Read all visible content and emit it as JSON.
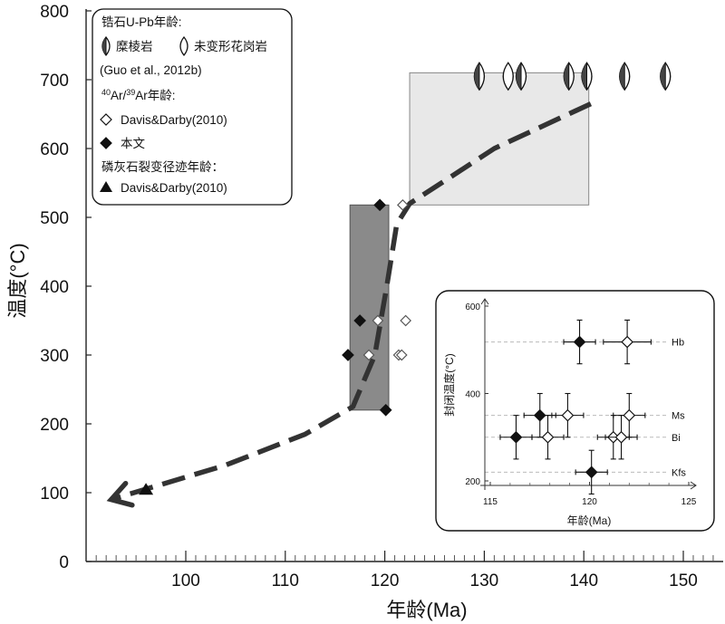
{
  "chart_data": {
    "type": "scatter",
    "xlabel": "年龄(Ma)",
    "ylabel": "温度(°C)",
    "xlim": [
      90,
      154
    ],
    "ylim": [
      0,
      800
    ],
    "xticks": [
      "100",
      "110",
      "120",
      "130",
      "140",
      "150"
    ],
    "yticks": [
      "0",
      "100",
      "200",
      "300",
      "400",
      "500",
      "600",
      "700",
      "800"
    ],
    "regions": [
      {
        "name": "ar-ar-closure-box",
        "x": [
          116.5,
          120.4
        ],
        "y": [
          220,
          518
        ],
        "shade": "dark"
      },
      {
        "name": "zircon-box",
        "x": [
          122.5,
          140.5
        ],
        "y": [
          518,
          710
        ],
        "shade": "light"
      }
    ],
    "zircon_upb": {
      "mylonite": [
        {
          "x": 129.5,
          "y": 705
        },
        {
          "x": 133.7,
          "y": 705
        },
        {
          "x": 138.5,
          "y": 705
        },
        {
          "x": 140.3,
          "y": 705
        },
        {
          "x": 144.1,
          "y": 705
        },
        {
          "x": 148.2,
          "y": 705
        }
      ],
      "undeformed_granite": [
        {
          "x": 132.4,
          "y": 705
        }
      ]
    },
    "ar_ar_davis_darby_2010": [
      {
        "x": 119.3,
        "y": 350
      },
      {
        "x": 118.4,
        "y": 300
      },
      {
        "x": 121.4,
        "y": 300
      },
      {
        "x": 121.7,
        "y": 300
      },
      {
        "x": 122.1,
        "y": 350
      },
      {
        "x": 121.8,
        "y": 518
      }
    ],
    "ar_ar_this_paper": [
      {
        "x": 119.5,
        "y": 518
      },
      {
        "x": 117.5,
        "y": 350
      },
      {
        "x": 116.3,
        "y": 300
      },
      {
        "x": 120.1,
        "y": 220
      }
    ],
    "apatite_fission_track_davis_darby_2010": [
      {
        "x": 96,
        "y": 105
      }
    ],
    "cooling_path": [
      [
        140.7,
        665
      ],
      [
        131,
        600
      ],
      [
        122.5,
        520
      ],
      [
        121.2,
        490
      ],
      [
        120.2,
        400
      ],
      [
        119,
        300
      ],
      [
        116.8,
        225
      ],
      [
        112,
        185
      ],
      [
        104,
        140
      ],
      [
        92.5,
        90
      ]
    ],
    "legend": {
      "zircon_title": "锆石U-Pb年龄:",
      "mylonite": "糜棱岩",
      "undeformed_granite": "未变形花岗岩",
      "zircon_ref": "(Guo et al., 2012b)",
      "arar_title_sup1": "40",
      "arar_title_ar1": "Ar/",
      "arar_title_sup2": "39",
      "arar_title_ar2": "Ar年龄:",
      "davis_darby": "Davis&Darby(2010)",
      "this_paper": "本文",
      "aft_title": "磷灰石裂变径迹年龄：",
      "aft_davis_darby": "Davis&Darby(2010)"
    },
    "inset": {
      "type": "scatter-errorbar",
      "xlabel": "年龄(Ma)",
      "ylabel": "封闭温度(°C)",
      "xlim": [
        115,
        125
      ],
      "ylim": [
        200,
        600
      ],
      "xticks": [
        "115",
        "120",
        "125"
      ],
      "yticks": [
        "200",
        "400",
        "600"
      ],
      "closure_lines": [
        {
          "label": "Hb",
          "y": 518
        },
        {
          "label": "Ms",
          "y": 350
        },
        {
          "label": "Bi",
          "y": 300
        },
        {
          "label": "Kfs",
          "y": 220
        }
      ],
      "this_paper": [
        {
          "x": 119.5,
          "y": 518,
          "xerr": 0.8,
          "yerr": 50
        },
        {
          "x": 117.5,
          "y": 350,
          "xerr": 0.8,
          "yerr": 50
        },
        {
          "x": 116.3,
          "y": 300,
          "xerr": 0.8,
          "yerr": 50
        },
        {
          "x": 120.1,
          "y": 220,
          "xerr": 0.8,
          "yerr": 50
        }
      ],
      "davis_darby": [
        {
          "x": 121.9,
          "y": 518,
          "xerr": 1.2,
          "yerr": 50
        },
        {
          "x": 118.9,
          "y": 350,
          "xerr": 0.8,
          "yerr": 50
        },
        {
          "x": 117.9,
          "y": 300,
          "xerr": 0.8,
          "yerr": 50
        },
        {
          "x": 121.2,
          "y": 300,
          "xerr": 0.8,
          "yerr": 50
        },
        {
          "x": 121.6,
          "y": 300,
          "xerr": 0.8,
          "yerr": 50
        },
        {
          "x": 122.0,
          "y": 350,
          "xerr": 0.8,
          "yerr": 50
        }
      ]
    }
  }
}
